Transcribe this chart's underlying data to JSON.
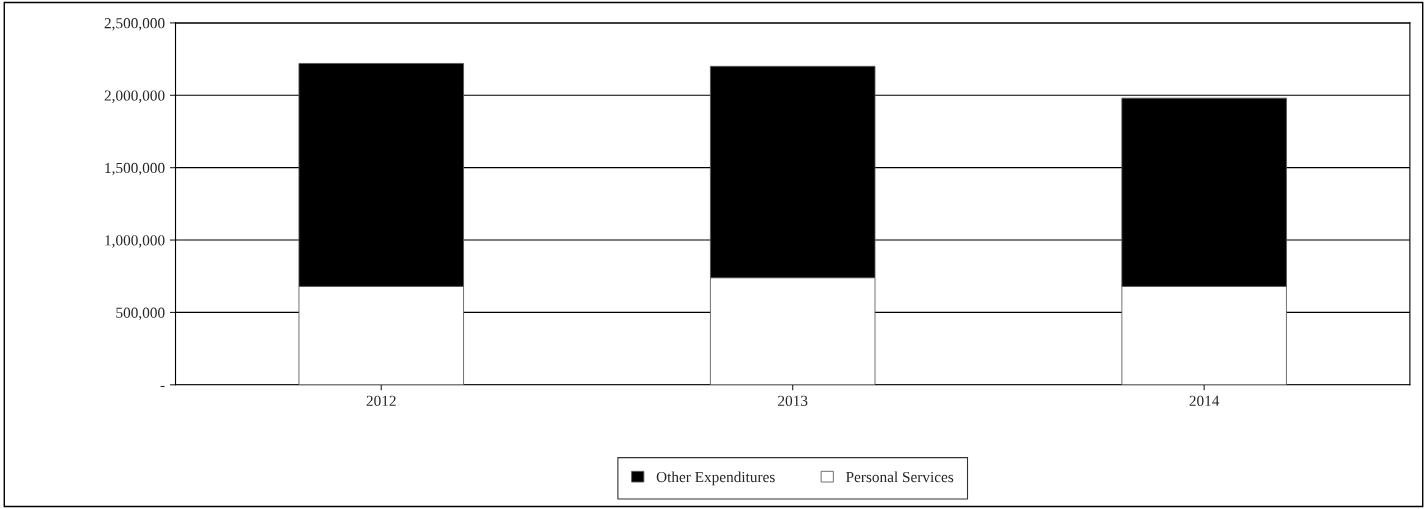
{
  "chart_data": {
    "type": "bar",
    "stacked": true,
    "categories": [
      "2012",
      "2013",
      "2014"
    ],
    "series": [
      {
        "name": "Personal Services",
        "color": "#ffffff",
        "values": [
          680000,
          740000,
          680000
        ]
      },
      {
        "name": "Other Expenditures",
        "color": "#000000",
        "values": [
          1540000,
          1460000,
          1300000
        ]
      }
    ],
    "ylim": [
      0,
      2500000
    ],
    "yticks": [
      {
        "value": 0,
        "label": "-"
      },
      {
        "value": 500000,
        "label": "500,000"
      },
      {
        "value": 1000000,
        "label": "1,000,000"
      },
      {
        "value": 1500000,
        "label": "1,500,000"
      },
      {
        "value": 2000000,
        "label": "2,000,000"
      },
      {
        "value": 2500000,
        "label": "2,500,000"
      }
    ],
    "grid": "y",
    "legend": "bottom"
  }
}
